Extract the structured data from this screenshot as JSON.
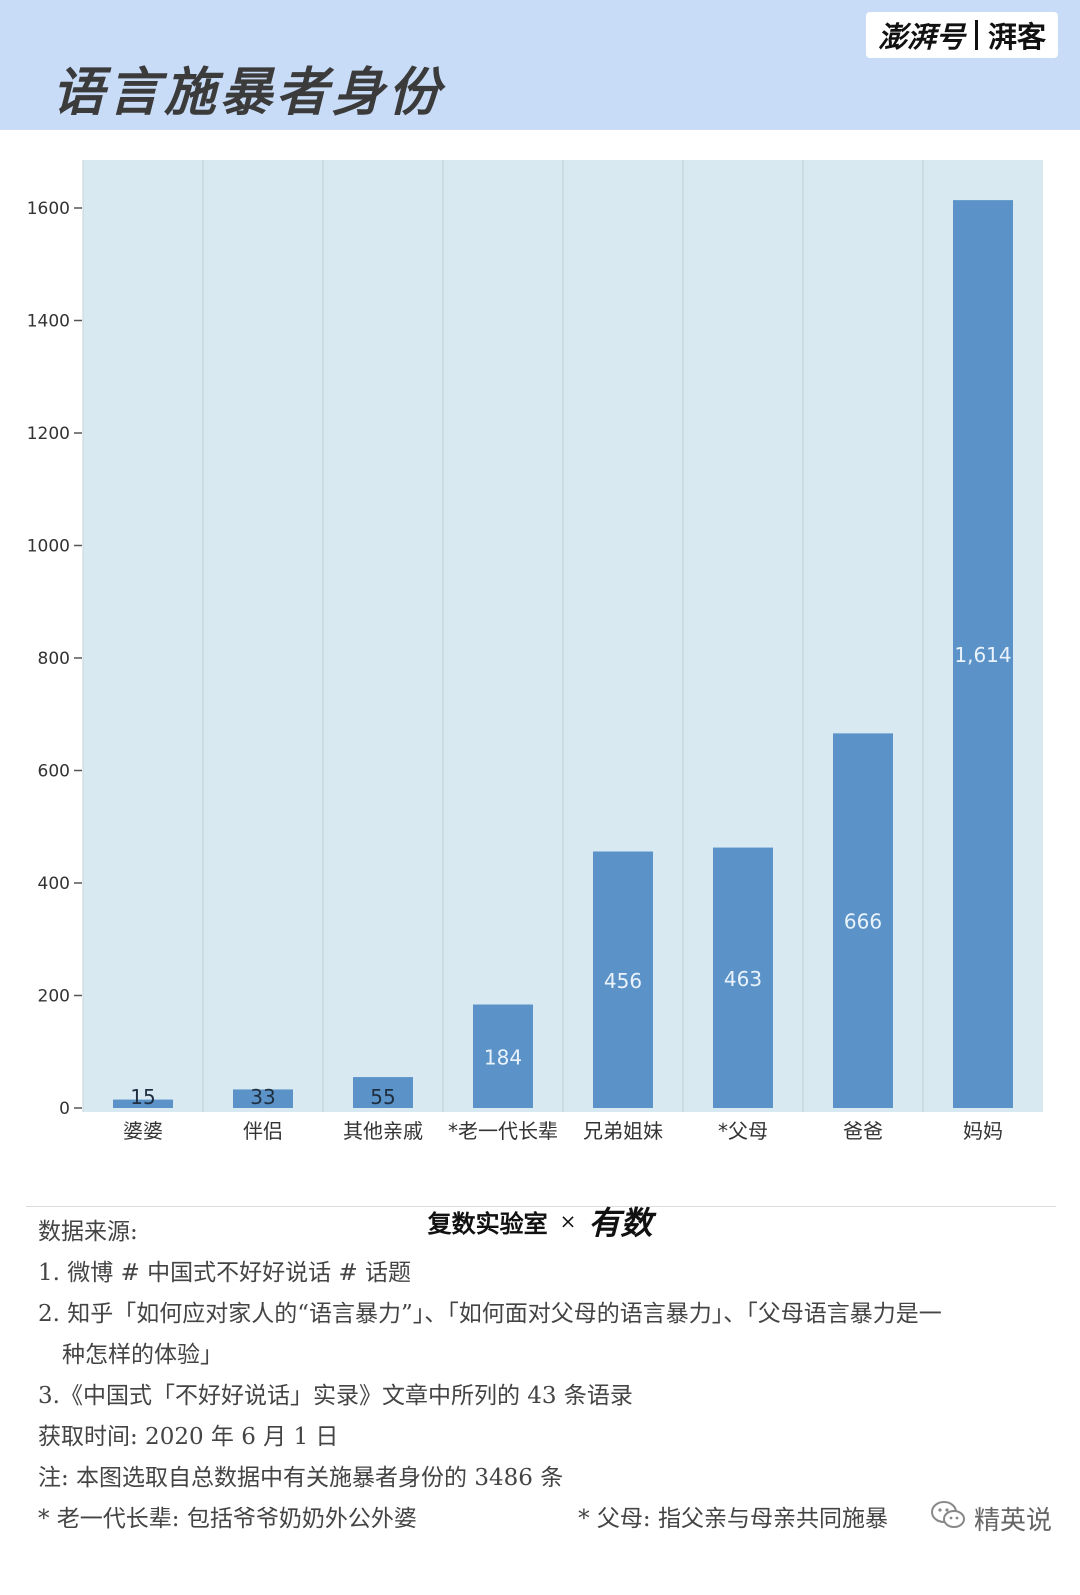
{
  "header": {
    "title": "语言施暴者身份",
    "brand_primary": "澎湃号",
    "brand_secondary": "湃客"
  },
  "chart_data": {
    "type": "bar",
    "categories": [
      "婆婆",
      "伴侣",
      "其他亲戚",
      "*老一代长辈",
      "兄弟姐妹",
      "*父母",
      "爸爸",
      "妈妈"
    ],
    "values": [
      15,
      33,
      55,
      184,
      456,
      463,
      666,
      1614
    ],
    "value_labels": [
      "15",
      "33",
      "55",
      "184",
      "456",
      "463",
      "666",
      "1,614"
    ],
    "yticks": [
      0,
      200,
      400,
      600,
      800,
      1000,
      1200,
      1400,
      1600
    ],
    "ylim": [
      0,
      1700
    ],
    "grid": "vertical-category-separators",
    "bar_color": "#5b93c8",
    "plot_background": "#d8e9f2"
  },
  "credit": {
    "lab": "复数实验室",
    "separator": "×",
    "partner": "有数"
  },
  "notes": {
    "source_heading": "数据来源:",
    "source_1": "1. 微博 # 中国式不好好说话 # 话题",
    "source_2a": "2. 知乎「如何应对家人的“语言暴力”」、「如何面对父母的语言暴力」、「父母语言暴力是一",
    "source_2b": "种怎样的体验」",
    "source_3": "3.《中国式「不好好说话」实录》文章中所列的 43 条语录",
    "time": "获取时间: 2020 年 6 月 1 日",
    "note": "注: 本图选取自总数据中有关施暴者身份的 3486 条",
    "def_elders": "* 老一代长辈: 包括爷爷奶奶外公外婆",
    "def_parents": "* 父母: 指父亲与母亲共同施暴"
  },
  "watermark": {
    "text": "精英说",
    "icon": "wechat-icon"
  }
}
